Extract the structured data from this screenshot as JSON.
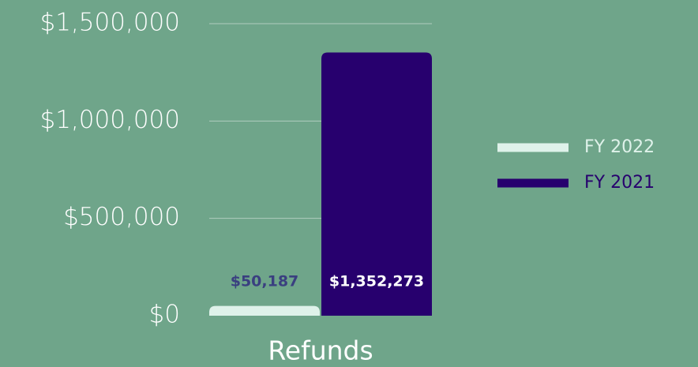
{
  "chart_data": {
    "type": "bar",
    "categories": [
      "Refunds"
    ],
    "series": [
      {
        "name": "FY 2022",
        "color": "#dff2ea",
        "values": [
          50187
        ],
        "value_labels": [
          "$50,187"
        ],
        "label_color": "#3a3f80"
      },
      {
        "name": "FY 2021",
        "color": "#27006e",
        "values": [
          1352273
        ],
        "value_labels": [
          "$1,352,273"
        ],
        "label_color": "#ffffff"
      }
    ],
    "ylim": [
      0,
      1500000
    ],
    "yticks": [
      {
        "value": 0,
        "label": "$0"
      },
      {
        "value": 500000,
        "label": "$500,000"
      },
      {
        "value": 1000000,
        "label": "$1,000,000"
      },
      {
        "value": 1500000,
        "label": "$1,500,000"
      }
    ],
    "grid": true,
    "legend": "right"
  }
}
